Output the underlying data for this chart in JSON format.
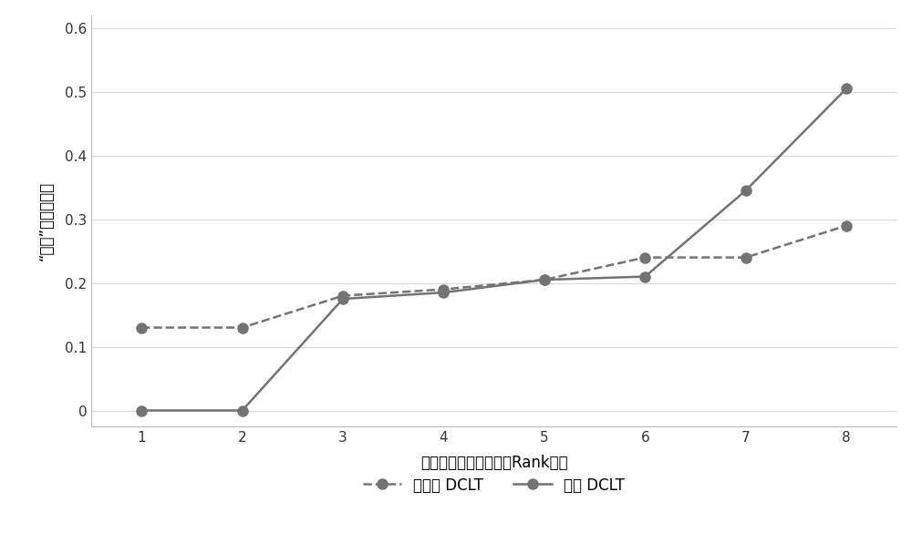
{
  "x": [
    1,
    2,
    3,
    4,
    5,
    6,
    7,
    8
  ],
  "no_dclt": [
    0.13,
    0.13,
    0.18,
    0.19,
    0.205,
    0.24,
    0.24,
    0.29
  ],
  "dclt": [
    0.0,
    0.0,
    0.175,
    0.185,
    0.205,
    0.21,
    0.345,
    0.505
  ],
  "xlabel": "检索结果中对象等级（Rank）値",
  "ylabel": "“形状”描述符距离",
  "ylim": [
    -0.025,
    0.62
  ],
  "yticks": [
    0.0,
    0.1,
    0.2,
    0.3,
    0.4,
    0.5,
    0.6
  ],
  "ytick_labels": [
    "0",
    "0.1",
    "0.2",
    "0.3",
    "0.4",
    "0.5",
    "0.6"
  ],
  "xticks": [
    1,
    2,
    3,
    4,
    5,
    6,
    7,
    8
  ],
  "legend_no_dclt": "不使用 DCLT",
  "legend_dclt": "使用 DCLT",
  "line_color": "#737373",
  "background_color": "#ffffff",
  "grid_color": "#d9d9d9",
  "marker_size": 8,
  "line_width": 1.8,
  "xlabel_fontsize": 12,
  "ylabel_fontsize": 12,
  "tick_fontsize": 11,
  "legend_fontsize": 12
}
